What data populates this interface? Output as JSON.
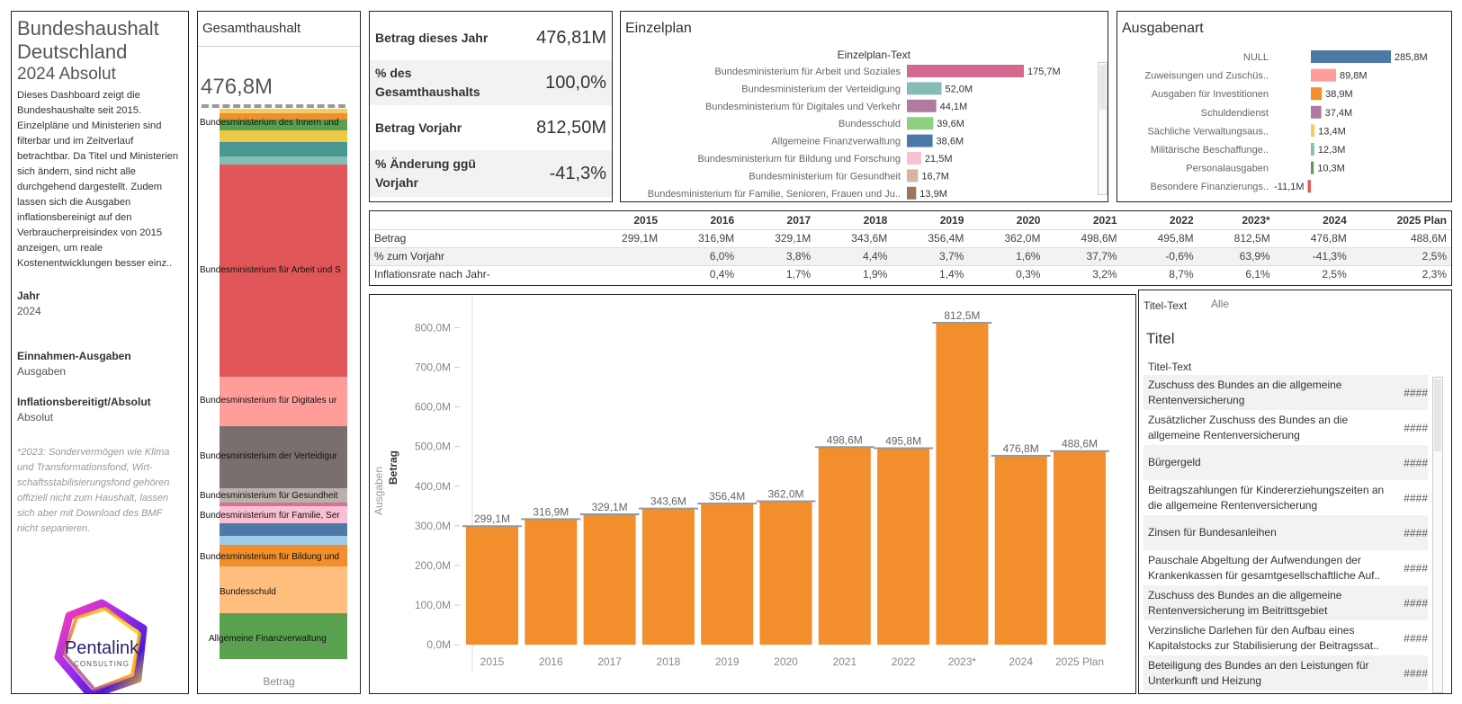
{
  "sidebar": {
    "title": "Bundeshaushalt Deutschland",
    "subtitle": "2024 Absolut",
    "description": "Dieses Dashboard zeigt die Bundeshaushalte seit 2015. Einzelpläne und Ministerien sind filterbar und im Zeitverlauf betrachtbar. Da Titel und Ministerien sich ändern, sind nicht alle durchgehend dargestellt. Zudem lassen sich die Ausgaben inflationsbereinigt auf den Verbraucherpreisindex von 2015 anzeigen, um reale Kostenentwicklungen besser einz..",
    "filters": [
      {
        "label": "Jahr",
        "value": "2024"
      },
      {
        "label": "Einnahmen-Ausgaben",
        "value": "Ausgaben"
      },
      {
        "label": "Inflationsbereitigt/Absolut",
        "value": "Absolut"
      }
    ],
    "note": "*2023: Sondervermögen wie Klima und Transformationsfond, Wirt-schaftsstabilisierungsfond gehören offiziell nicht zum Haushalt, lassen sich aber mit Download des BMF nicht separieren.",
    "logo_text": "Pentalink",
    "logo_subtext": "CONSULTING"
  },
  "stacked": {
    "title": "Gesamthaushalt",
    "total": "476,8M",
    "axis_label": "Betrag",
    "labels": [
      "Bundesministerium des Innern und",
      "Bundesministerium für Arbeit und S",
      "Bundesministerium für Digitales ur",
      "Bundesministerium der Verteidigur",
      "Bundesministerium für Gesundheit",
      "Bundesministerium für Familie, Ser",
      "Bundesministerium für Bildung und",
      "Bundesschuld",
      "Allgemeine Finanzverwaltung"
    ]
  },
  "kpi": [
    {
      "label": "Betrag dieses Jahr",
      "value": "476,81M"
    },
    {
      "label": "% des Gesamthaushalts",
      "value": "100,0%"
    },
    {
      "label": "Betrag Vorjahr",
      "value": "812,50M"
    },
    {
      "label": "%  Änderung ggü Vorjahr",
      "value": "-41,3%"
    }
  ],
  "einzelplan": {
    "title": "Einzelplan",
    "column_header": "Einzelplan-Text",
    "rows": [
      {
        "label": "Bundesministerium für Arbeit und Soziales",
        "value": 175.7,
        "text": "175,7M",
        "color": "#d4698f"
      },
      {
        "label": "Bundesministerium der Verteidigung",
        "value": 52.0,
        "text": "52,0M",
        "color": "#86bcb6"
      },
      {
        "label": "Bundesministerium für Digitales und Verkehr",
        "value": 44.1,
        "text": "44,1M",
        "color": "#b07aa1"
      },
      {
        "label": "Bundesschuld",
        "value": 39.6,
        "text": "39,6M",
        "color": "#8cd17d"
      },
      {
        "label": "Allgemeine Finanzverwaltung",
        "value": 38.6,
        "text": "38,6M",
        "color": "#4e79a7"
      },
      {
        "label": "Bundesministerium für Bildung und Forschung",
        "value": 21.5,
        "text": "21,5M",
        "color": "#fabfd2"
      },
      {
        "label": "Bundesministerium für Gesundheit",
        "value": 16.7,
        "text": "16,7M",
        "color": "#d7b5a6"
      },
      {
        "label": "Bundesministerium für Familie, Senioren, Frauen und Ju..",
        "value": 13.9,
        "text": "13,9M",
        "color": "#9d7660"
      }
    ]
  },
  "ausgabenart": {
    "title": "Ausgabenart",
    "rows": [
      {
        "label": "NULL",
        "value": 285.8,
        "text": "285,8M",
        "color": "#4e79a7"
      },
      {
        "label": "Zuweisungen und Zuschüs..",
        "value": 89.8,
        "text": "89,8M",
        "color": "#ff9d9a"
      },
      {
        "label": "Ausgaben für Investitionen",
        "value": 38.9,
        "text": "38,9M",
        "color": "#f28e2b"
      },
      {
        "label": "Schuldendienst",
        "value": 37.4,
        "text": "37,4M",
        "color": "#b07aa1"
      },
      {
        "label": "Sächliche Verwaltungsaus..",
        "value": 13.4,
        "text": "13,4M",
        "color": "#f1ce63"
      },
      {
        "label": "Militärische Beschaffunge..",
        "value": 12.3,
        "text": "12,3M",
        "color": "#86bcb6"
      },
      {
        "label": "Personalausgaben",
        "value": 10.3,
        "text": "10,3M",
        "color": "#59a14f"
      },
      {
        "label": "Besondere Finanzierungs..",
        "value": -11.1,
        "text": "-11,1M",
        "color": "#e15759"
      }
    ]
  },
  "table": {
    "years": [
      "2015",
      "2016",
      "2017",
      "2018",
      "2019",
      "2020",
      "2021",
      "2022",
      "2023*",
      "2024",
      "2025 Plan"
    ],
    "rows": [
      {
        "label": "Betrag",
        "values": [
          "299,1M",
          "316,9M",
          "329,1M",
          "343,6M",
          "356,4M",
          "362,0M",
          "498,6M",
          "495,8M",
          "812,5M",
          "476,8M",
          "488,6M"
        ]
      },
      {
        "label": "% zum Vorjahr",
        "values": [
          "",
          "6,0%",
          "3,8%",
          "4,4%",
          "3,7%",
          "1,6%",
          "37,7%",
          "-0,6%",
          "63,9%",
          "-41,3%",
          "2,5%"
        ]
      },
      {
        "label": "Inflationsrate nach Jahr-",
        "values": [
          "",
          "0,4%",
          "1,7%",
          "1,9%",
          "1,4%",
          "0,3%",
          "3,2%",
          "8,7%",
          "6,1%",
          "2,5%",
          "2,3%"
        ]
      }
    ]
  },
  "chart_data": {
    "type": "bar",
    "categories": [
      "2015",
      "2016",
      "2017",
      "2018",
      "2019",
      "2020",
      "2021",
      "2022",
      "2023*",
      "2024",
      "2025 Plan"
    ],
    "values": [
      299.1,
      316.9,
      329.1,
      343.6,
      356.4,
      362.0,
      498.6,
      495.8,
      812.5,
      476.8,
      488.6
    ],
    "data_labels": [
      "299,1M",
      "316,9M",
      "329,1M",
      "343,6M",
      "356,4M",
      "362,0M",
      "498,6M",
      "495,8M",
      "812,5M",
      "476,8M",
      "488,6M"
    ],
    "yticks": [
      "0,0M",
      "100,0M",
      "200,0M",
      "300,0M",
      "400,0M",
      "500,0M",
      "600,0M",
      "700,0M",
      "800,0M"
    ],
    "ylim": [
      0,
      850
    ],
    "ylabel_group": "Ausgaben",
    "ylabel": "Betrag",
    "color": "#f28e2b",
    "grid": false
  },
  "titel": {
    "filter_label": "Titel-Text",
    "filter_value": "Alle",
    "title": "Titel",
    "column_header": "Titel-Text",
    "rows": [
      {
        "text": "Zuschuss des Bundes an die allgemeine Rentenversicherung",
        "value": "####"
      },
      {
        "text": "Zusätzlicher Zuschuss des Bundes an die allgemeine Rentenversicherung",
        "value": "####"
      },
      {
        "text": "Bürgergeld",
        "value": "####"
      },
      {
        "text": "Beitragszahlungen für Kindererziehungszeiten an die allgemeine Rentenversicherung",
        "value": "####"
      },
      {
        "text": "Zinsen für Bundesanleihen",
        "value": "####"
      },
      {
        "text": "Pauschale Abgeltung der Aufwendungen der Krankenkassen für gesamtgesellschaftliche Auf..",
        "value": "####"
      },
      {
        "text": "Zuschuss des Bundes an die allgemeine Rentenversicherung im Beitrittsgebiet",
        "value": "####"
      },
      {
        "text": "Verzinsliche Darlehen für den Aufbau eines Kapitalstocks zur Stabilisierung der Beitragssat..",
        "value": "####"
      },
      {
        "text": "Beteiligung des Bundes an den Leistungen für Unterkunft und Heizung",
        "value": "####"
      }
    ]
  }
}
